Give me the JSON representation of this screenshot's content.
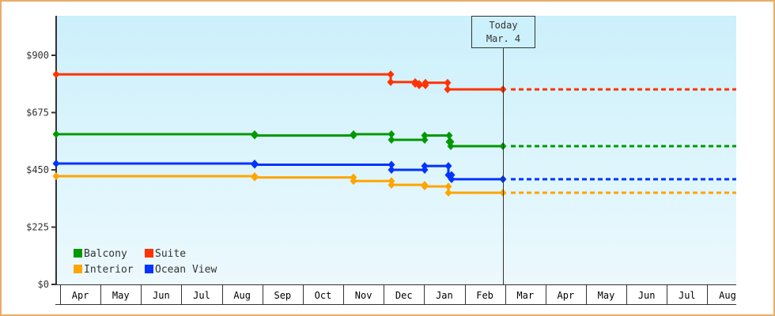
{
  "chart_data": {
    "type": "line",
    "title": "",
    "xlabel": "",
    "ylabel": "",
    "ylim": [
      0,
      1000
    ],
    "y_ticks": [
      {
        "label": "$0",
        "value": 0
      },
      {
        "label": "$225",
        "value": 225
      },
      {
        "label": "$450",
        "value": 450
      },
      {
        "label": "$675",
        "value": 675
      },
      {
        "label": "$900",
        "value": 900
      }
    ],
    "x_months": [
      "Apr",
      "May",
      "Jun",
      "Jul",
      "Aug",
      "Sep",
      "Oct",
      "Nov",
      "Dec",
      "Jan",
      "Feb",
      "Mar",
      "Apr",
      "May",
      "Jun",
      "Jul",
      "Aug"
    ],
    "today_marker": {
      "line1": "Today",
      "line2": "Mar. 4"
    },
    "legend": [
      {
        "name": "Balcony",
        "color": "#009900"
      },
      {
        "name": "Suite",
        "color": "#ff3300"
      },
      {
        "name": "Interior",
        "color": "#ffa500"
      },
      {
        "name": "Ocean View",
        "color": "#0033ff"
      }
    ],
    "series": [
      {
        "name": "Suite",
        "color": "#ff3300",
        "points": [
          {
            "x": 71,
            "value": 825
          },
          {
            "x": 494,
            "value": 825
          },
          {
            "x": 494,
            "value": 795
          },
          {
            "x": 521,
            "value": 795
          },
          {
            "x": 525,
            "value": 788
          },
          {
            "x": 530,
            "value": 782
          },
          {
            "x": 536,
            "value": 782
          },
          {
            "x": 538,
            "value": 792
          },
          {
            "x": 566,
            "value": 792
          },
          {
            "x": 566,
            "value": 766
          },
          {
            "x": 636,
            "value": 766
          }
        ],
        "projected": 766
      },
      {
        "name": "Balcony",
        "color": "#009900",
        "points": [
          {
            "x": 71,
            "value": 590
          },
          {
            "x": 322,
            "value": 590
          },
          {
            "x": 322,
            "value": 585
          },
          {
            "x": 446,
            "value": 585
          },
          {
            "x": 447,
            "value": 590
          },
          {
            "x": 494,
            "value": 590
          },
          {
            "x": 495,
            "value": 568
          },
          {
            "x": 536,
            "value": 568
          },
          {
            "x": 537,
            "value": 585
          },
          {
            "x": 566,
            "value": 585
          },
          {
            "x": 568,
            "value": 560
          },
          {
            "x": 570,
            "value": 543
          },
          {
            "x": 636,
            "value": 543
          }
        ],
        "projected": 543
      },
      {
        "name": "Ocean View",
        "color": "#0033ff",
        "points": [
          {
            "x": 71,
            "value": 475
          },
          {
            "x": 322,
            "value": 475
          },
          {
            "x": 322,
            "value": 470
          },
          {
            "x": 494,
            "value": 470
          },
          {
            "x": 495,
            "value": 450
          },
          {
            "x": 536,
            "value": 450
          },
          {
            "x": 537,
            "value": 465
          },
          {
            "x": 566,
            "value": 465
          },
          {
            "x": 567,
            "value": 430
          },
          {
            "x": 571,
            "value": 413
          },
          {
            "x": 636,
            "value": 413
          }
        ],
        "projected": 413
      },
      {
        "name": "Interior",
        "color": "#ffa500",
        "points": [
          {
            "x": 71,
            "value": 425
          },
          {
            "x": 322,
            "value": 425
          },
          {
            "x": 322,
            "value": 420
          },
          {
            "x": 446,
            "value": 420
          },
          {
            "x": 447,
            "value": 406
          },
          {
            "x": 494,
            "value": 406
          },
          {
            "x": 495,
            "value": 391
          },
          {
            "x": 536,
            "value": 391
          },
          {
            "x": 537,
            "value": 385
          },
          {
            "x": 566,
            "value": 385
          },
          {
            "x": 567,
            "value": 360
          },
          {
            "x": 636,
            "value": 360
          }
        ],
        "projected": 360
      }
    ]
  }
}
